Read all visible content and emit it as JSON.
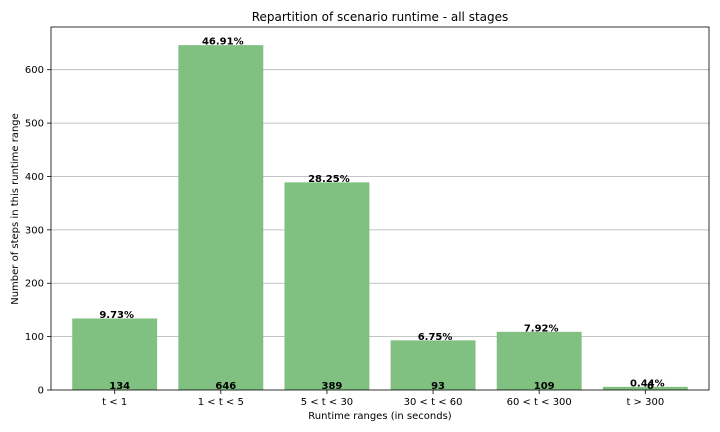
{
  "chart_data": {
    "type": "bar",
    "title": "Repartition of scenario runtime - all stages",
    "xlabel": "Runtime ranges (in seconds)",
    "ylabel": "Number of steps in this runtime range",
    "categories": [
      "t < 1",
      "1 < t < 5",
      "5 < t < 30",
      "30 < t < 60",
      "60 < t < 300",
      "t > 300"
    ],
    "values": [
      134,
      646,
      389,
      93,
      109,
      6
    ],
    "value_labels": [
      "134",
      "646",
      "389",
      "93",
      "109",
      "6"
    ],
    "percent_labels": [
      "9.73%",
      "46.91%",
      "28.25%",
      "6.75%",
      "7.92%",
      "0.44%"
    ],
    "ylim": [
      0,
      680
    ],
    "yticks": [
      0,
      100,
      200,
      300,
      400,
      500,
      600
    ],
    "grid": "y",
    "bar_color": "#80c080"
  }
}
